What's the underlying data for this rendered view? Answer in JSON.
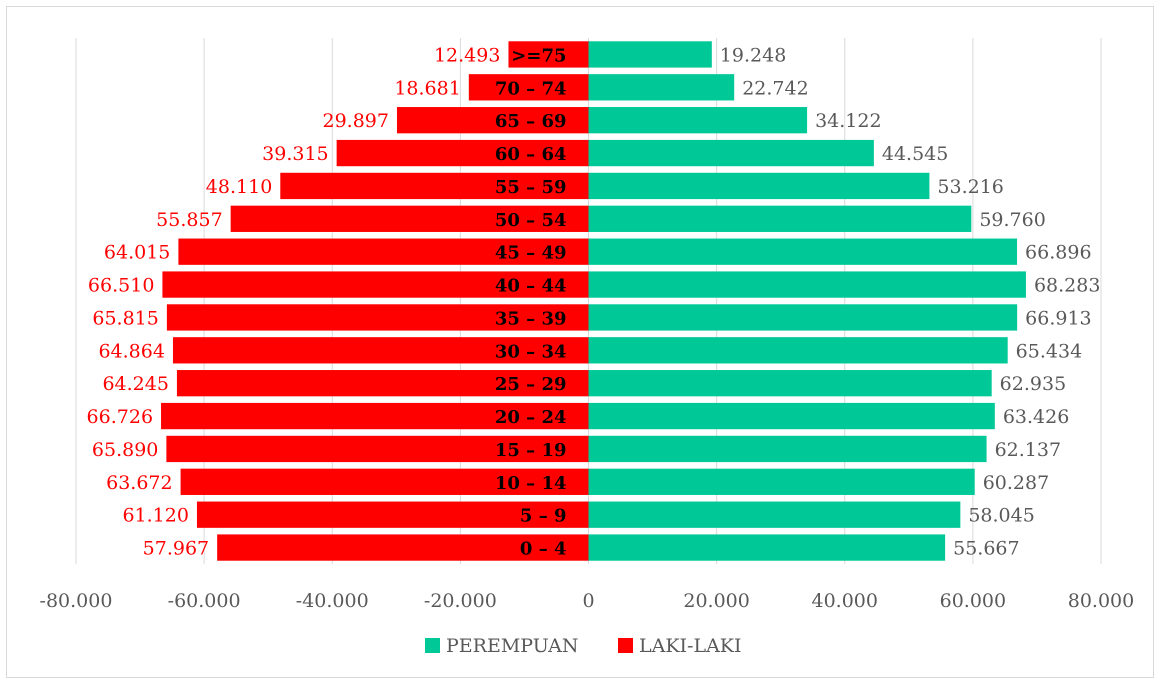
{
  "chart_data": {
    "type": "bar",
    "orientation": "horizontal",
    "categories": [
      ">=75",
      "70 – 74",
      "65 – 69",
      "60 – 64",
      "55 – 59",
      "50 – 54",
      "45 – 49",
      "40 – 44",
      "35 – 39",
      "30 – 34",
      "25 – 29",
      "20 – 24",
      "15 – 19",
      "10 – 14",
      "5 – 9",
      "0 – 4"
    ],
    "series": [
      {
        "name": "PEREMPUAN",
        "color": "#00c896",
        "values": [
          19248,
          22742,
          34122,
          44545,
          53216,
          59760,
          66896,
          68283,
          66913,
          65434,
          62935,
          63426,
          62137,
          60287,
          58045,
          55667
        ],
        "labels": [
          "19.248",
          "22.742",
          "34.122",
          "44.545",
          "53.216",
          "59.760",
          "66.896",
          "68.283",
          "66.913",
          "65.434",
          "62.935",
          "63.426",
          "62.137",
          "60.287",
          "58.045",
          "55.667"
        ]
      },
      {
        "name": "LAKI-LAKI",
        "color": "#ff0000",
        "values": [
          -12493,
          -18681,
          -29897,
          -39315,
          -48110,
          -55857,
          -64015,
          -66510,
          -65815,
          -64864,
          -64245,
          -66726,
          -65890,
          -63672,
          -61120,
          -57967
        ],
        "labels": [
          "12.493",
          "18.681",
          "29.897",
          "39.315",
          "48.110",
          "55.857",
          "64.015",
          "66.510",
          "65.815",
          "64.864",
          "64.245",
          "66.726",
          "65.890",
          "63.672",
          "61.120",
          "57.967"
        ]
      }
    ],
    "xlim": [
      -80000,
      80000
    ],
    "x_ticks": [
      -80000,
      -60000,
      -40000,
      -20000,
      0,
      20000,
      40000,
      60000,
      80000
    ],
    "x_tick_labels": [
      "-80.000",
      "-60.000",
      "-40.000",
      "-20.000",
      "0",
      "20.000",
      "40.000",
      "60.000",
      "80.000"
    ],
    "grid": "vertical",
    "legend_position": "bottom",
    "legend": [
      "PEREMPUAN",
      "LAKI-LAKI"
    ],
    "title": "",
    "xlabel": "",
    "ylabel": ""
  }
}
